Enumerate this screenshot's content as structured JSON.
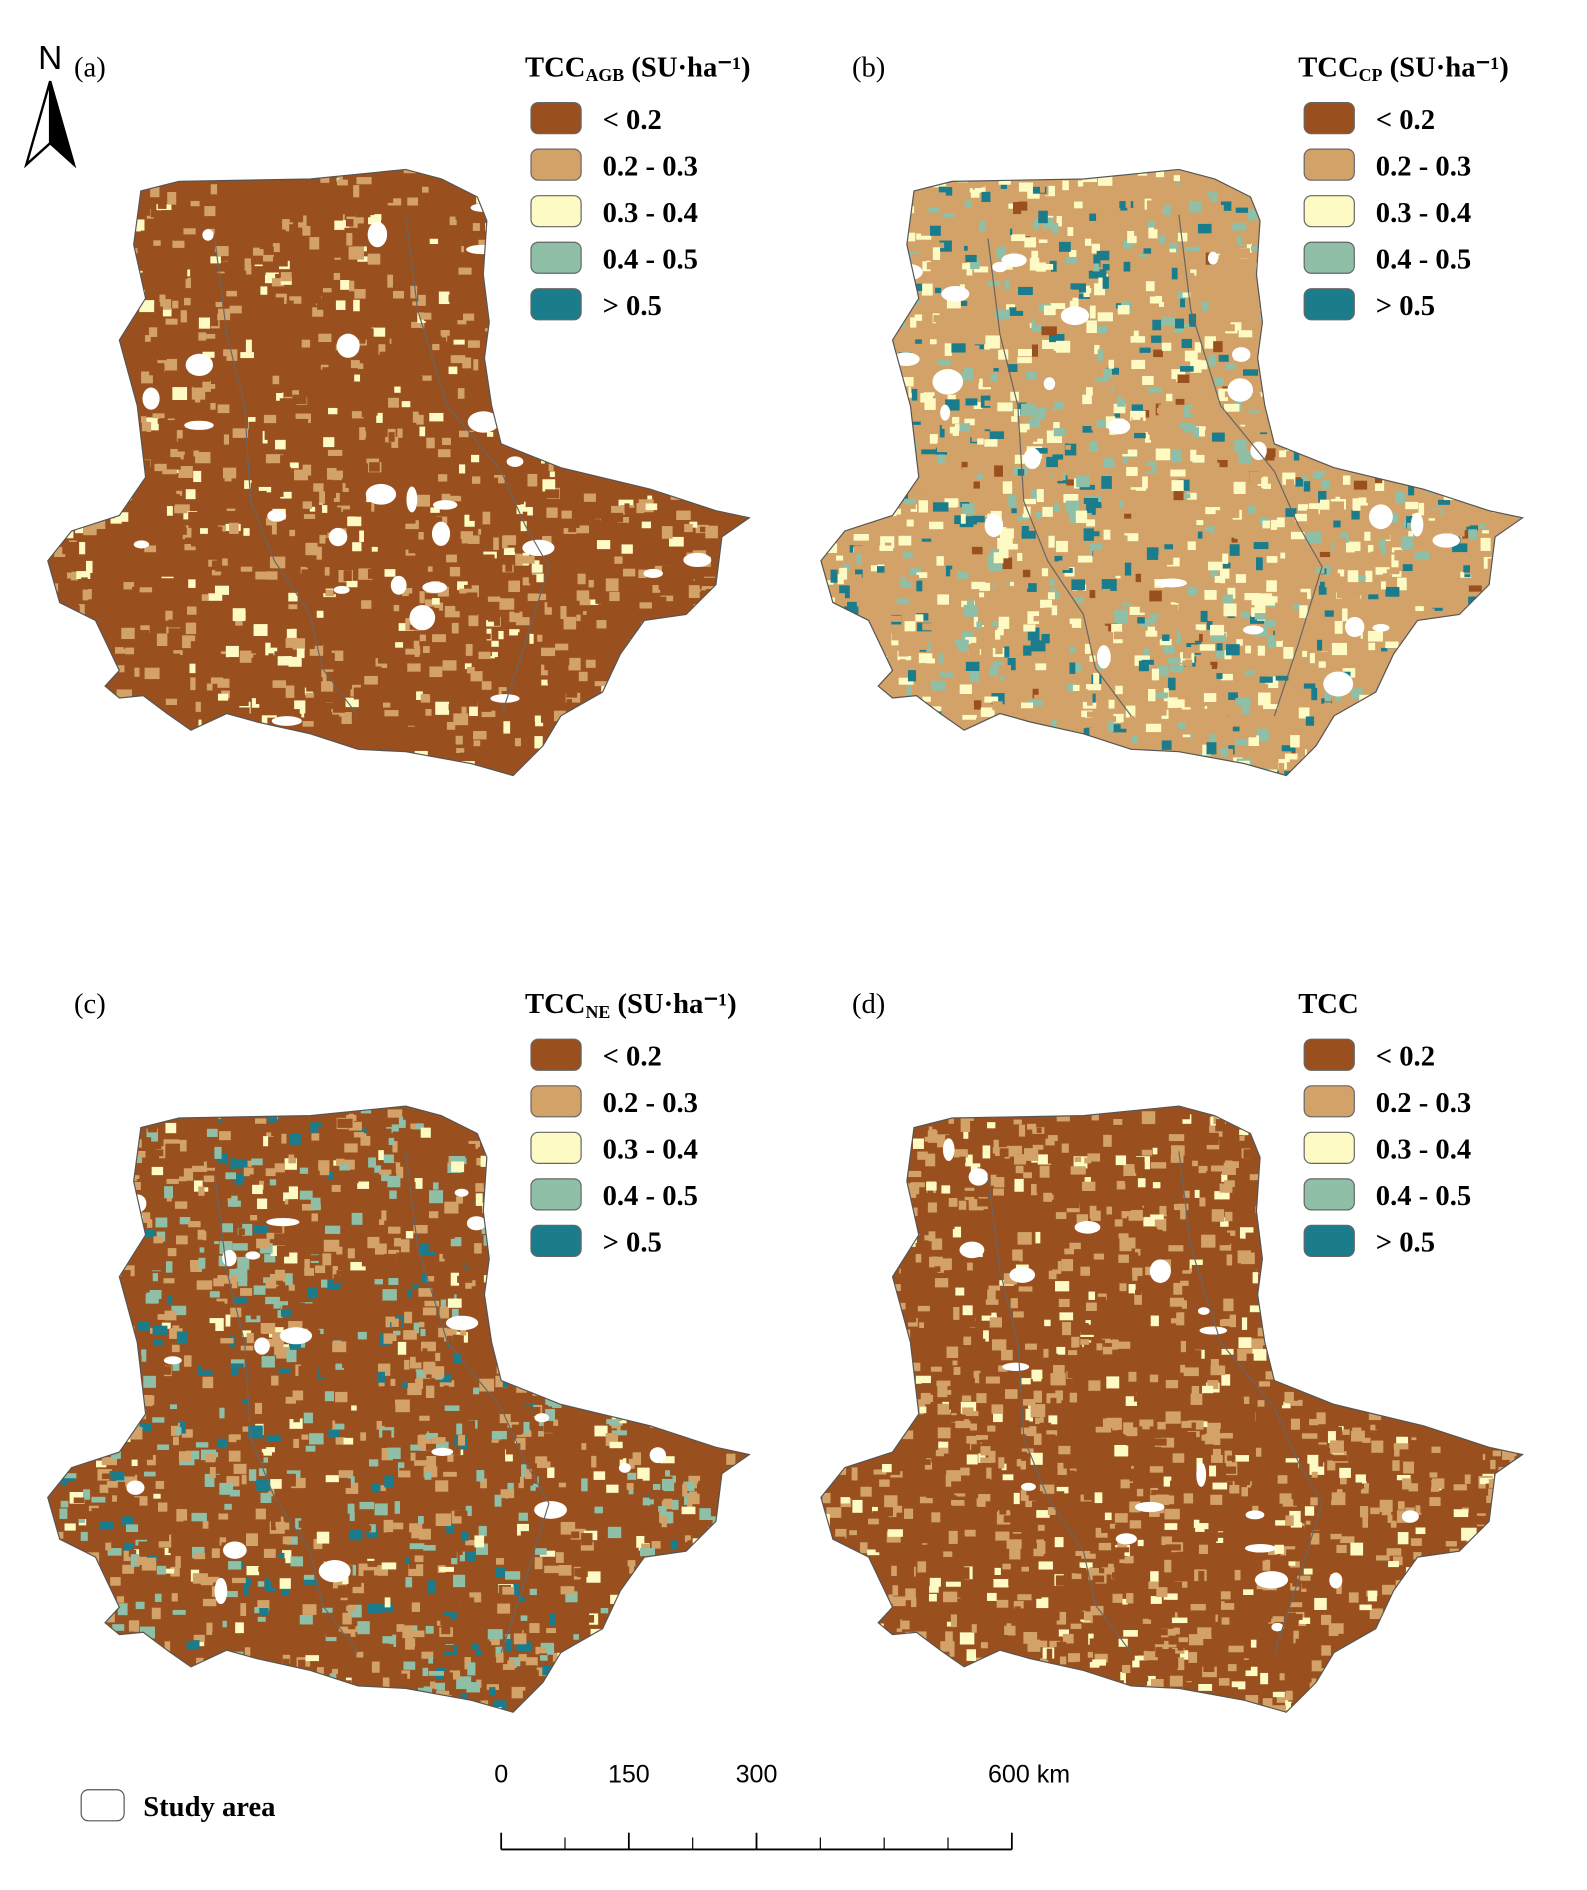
{
  "north": "N",
  "panels": [
    {
      "label": "(a)",
      "legend_title": {
        "main": "TCC",
        "sub": "AGB",
        "unit": "(SU·ha⁻¹)"
      },
      "legend_items": [
        {
          "label": "< 0.2",
          "color": "#99501e"
        },
        {
          "label": "0.2 - 0.3",
          "color": "#d3a268"
        },
        {
          "label": "0.3 - 0.4",
          "color": "#fdfbc3"
        },
        {
          "label": "0.4 - 0.5",
          "color": "#8fbfa6"
        },
        {
          "label": "> 0.5",
          "color": "#1b7c8c"
        }
      ]
    },
    {
      "label": "(b)",
      "legend_title": {
        "main": "TCC",
        "sub": "CP",
        "unit": "(SU·ha⁻¹)"
      },
      "legend_items": [
        {
          "label": "< 0.2",
          "color": "#99501e"
        },
        {
          "label": "0.2 - 0.3",
          "color": "#d3a268"
        },
        {
          "label": "0.3 - 0.4",
          "color": "#fdfbc3"
        },
        {
          "label": "0.4 - 0.5",
          "color": "#8fbfa6"
        },
        {
          "label": "> 0.5",
          "color": "#1b7c8c"
        }
      ]
    },
    {
      "label": "(c)",
      "legend_title": {
        "main": "TCC",
        "sub": "NE",
        "unit": "(SU·ha⁻¹)"
      },
      "legend_items": [
        {
          "label": "< 0.2",
          "color": "#99501e"
        },
        {
          "label": "0.2 - 0.3",
          "color": "#d3a268"
        },
        {
          "label": "0.3 - 0.4",
          "color": "#fdfbc3"
        },
        {
          "label": "0.4 - 0.5",
          "color": "#8fbfa6"
        },
        {
          "label": "> 0.5",
          "color": "#1b7c8c"
        }
      ]
    },
    {
      "label": "(d)",
      "legend_title": {
        "main": "TCC"
      },
      "legend_items": [
        {
          "label": "< 0.2",
          "color": "#99501e"
        },
        {
          "label": "0.2 - 0.3",
          "color": "#d3a268"
        },
        {
          "label": "0.3 - 0.4",
          "color": "#fdfbc3"
        },
        {
          "label": "0.4 - 0.5",
          "color": "#8fbfa6"
        },
        {
          "label": "> 0.5",
          "color": "#1b7c8c"
        }
      ]
    }
  ],
  "scale_bar": {
    "max": 600,
    "ticks": [
      {
        "value": 0,
        "label": "0"
      },
      {
        "value": 150,
        "label": "150"
      },
      {
        "value": 300,
        "label": "300"
      },
      {
        "value": 600,
        "label": "600 km"
      }
    ]
  },
  "study_area": "Study area"
}
